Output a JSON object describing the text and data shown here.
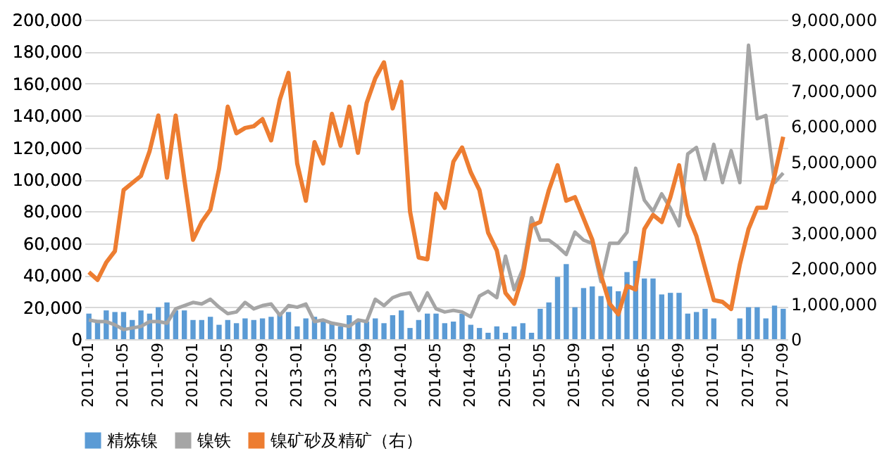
{
  "chart_data": {
    "type": "bar",
    "categories": [
      "2011-01",
      null,
      null,
      null,
      "2011-05",
      null,
      null,
      null,
      "2011-09",
      null,
      null,
      null,
      "2012-01",
      null,
      null,
      null,
      "2012-05",
      null,
      null,
      null,
      "2012-09",
      null,
      null,
      null,
      "2013-01",
      null,
      null,
      null,
      "2013-05",
      null,
      null,
      null,
      "2013-09",
      null,
      null,
      null,
      "2014-01",
      null,
      null,
      null,
      "2014-05",
      null,
      null,
      null,
      "2014-09",
      null,
      null,
      null,
      "2015-01",
      null,
      null,
      null,
      "2015-05",
      null,
      null,
      null,
      "2015-09",
      null,
      null,
      null,
      "2016-01",
      null,
      null,
      null,
      "2016-05",
      null,
      null,
      null,
      "2016-09",
      null,
      null,
      null,
      "2017-01",
      null,
      null,
      null,
      "2017-05",
      null,
      null,
      null,
      "2017-09"
    ],
    "series": [
      {
        "name": "精炼镍",
        "color": "#5b9bd5",
        "values": [
          16000,
          12000,
          18000,
          17000,
          17000,
          12000,
          18000,
          16000,
          20000,
          23000,
          18000,
          18000,
          12000,
          12000,
          14000,
          9000,
          12000,
          10000,
          13000,
          12000,
          13000,
          14000,
          16000,
          17000,
          8000,
          13000,
          14000,
          12000,
          10000,
          8000,
          15000,
          12000,
          11000,
          13000,
          10000,
          15000,
          18000,
          7000,
          12000,
          16000,
          16000,
          10000,
          11000,
          16000,
          9000,
          7000,
          4000,
          8000,
          4000,
          8000,
          10000,
          4000,
          19000,
          23000,
          39000,
          47000,
          20000,
          32000,
          33000,
          27000,
          33000,
          30000,
          42000,
          49000,
          38000,
          38000,
          28000,
          29000,
          29000,
          16000,
          17000,
          19000,
          13000,
          null,
          null,
          13000,
          20000,
          20000,
          13000,
          21000,
          19000
        ]
      },
      {
        "name": "镍铁",
        "type": "line",
        "color": "#a5a5a5",
        "values": [
          12000,
          11000,
          11000,
          9000,
          6000,
          7000,
          8000,
          11000,
          11000,
          10000,
          19000,
          21000,
          23000,
          22000,
          25000,
          20000,
          16000,
          17000,
          23000,
          19000,
          21000,
          22000,
          15000,
          21000,
          20000,
          22000,
          11000,
          12000,
          10000,
          9000,
          8000,
          12000,
          11000,
          25000,
          21000,
          26000,
          28000,
          29000,
          18000,
          29000,
          19000,
          17000,
          18000,
          17000,
          14000,
          27000,
          30000,
          26000,
          52000,
          31000,
          44000,
          76000,
          62000,
          62000,
          58000,
          53000,
          67000,
          62000,
          60000,
          36000,
          60000,
          60000,
          67000,
          107000,
          87000,
          80000,
          91000,
          82000,
          71000,
          116000,
          120000,
          100000,
          122000,
          98000,
          118000,
          98000,
          184000,
          138000,
          140000,
          98000,
          104000
        ]
      },
      {
        "name": "镍矿砂及精矿（右）",
        "type": "line",
        "axis": "y2",
        "color": "#ed7d31",
        "values": [
          1890000,
          1670000,
          2160000,
          2480000,
          4200000,
          4400000,
          4600000,
          5300000,
          6300000,
          4550000,
          6300000,
          4500000,
          2800000,
          3300000,
          3650000,
          4800000,
          6550000,
          5800000,
          5950000,
          6000000,
          6200000,
          5600000,
          6750000,
          7500000,
          4950000,
          3900000,
          5550000,
          4950000,
          6350000,
          5450000,
          6550000,
          5250000,
          6650000,
          7350000,
          7800000,
          6500000,
          7250000,
          3600000,
          2300000,
          2250000,
          4100000,
          3700000,
          5000000,
          5400000,
          4700000,
          4200000,
          3000000,
          2500000,
          1300000,
          1000000,
          1800000,
          3200000,
          3300000,
          4200000,
          4900000,
          3900000,
          4000000,
          3400000,
          2800000,
          1800000,
          1000000,
          700000,
          1500000,
          1400000,
          3100000,
          3500000,
          3300000,
          4000000,
          4900000,
          3500000,
          2900000,
          2000000,
          1100000,
          1050000,
          850000,
          2100000,
          3100000,
          3700000,
          3700000,
          4600000,
          5700000
        ]
      }
    ],
    "ylim": [
      0,
      200000
    ],
    "yticks": [
      0,
      {
        "value": 20000,
        "label": "20,000"
      },
      {
        "value": 40000,
        "label": "40,000"
      },
      {
        "value": 60000,
        "label": "60,000"
      },
      {
        "value": 80000,
        "label": "80,000"
      },
      {
        "value": 100000,
        "label": "100,000"
      },
      {
        "value": 120000,
        "label": "120,000"
      },
      {
        "value": 140000,
        "label": "140,000"
      },
      {
        "value": 160000,
        "label": "160,000"
      },
      {
        "value": 180000,
        "label": "180,000"
      },
      {
        "value": 200000,
        "label": "200,000"
      }
    ],
    "y2lim": [
      0,
      9000000
    ],
    "y2ticks": [
      0,
      {
        "value": 1000000,
        "label": "1,000,000"
      },
      {
        "value": 2000000,
        "label": "2,000,000"
      },
      {
        "value": 3000000,
        "label": "3,000,000"
      },
      {
        "value": 4000000,
        "label": "4,000,000"
      },
      {
        "value": 5000000,
        "label": "5,000,000"
      },
      {
        "value": 6000000,
        "label": "6,000,000"
      },
      {
        "value": 7000000,
        "label": "7,000,000"
      },
      {
        "value": 8000000,
        "label": "8,000,000"
      },
      {
        "value": 9000000,
        "label": "9,000,000"
      }
    ],
    "grid": "y",
    "legend": "bottom"
  }
}
